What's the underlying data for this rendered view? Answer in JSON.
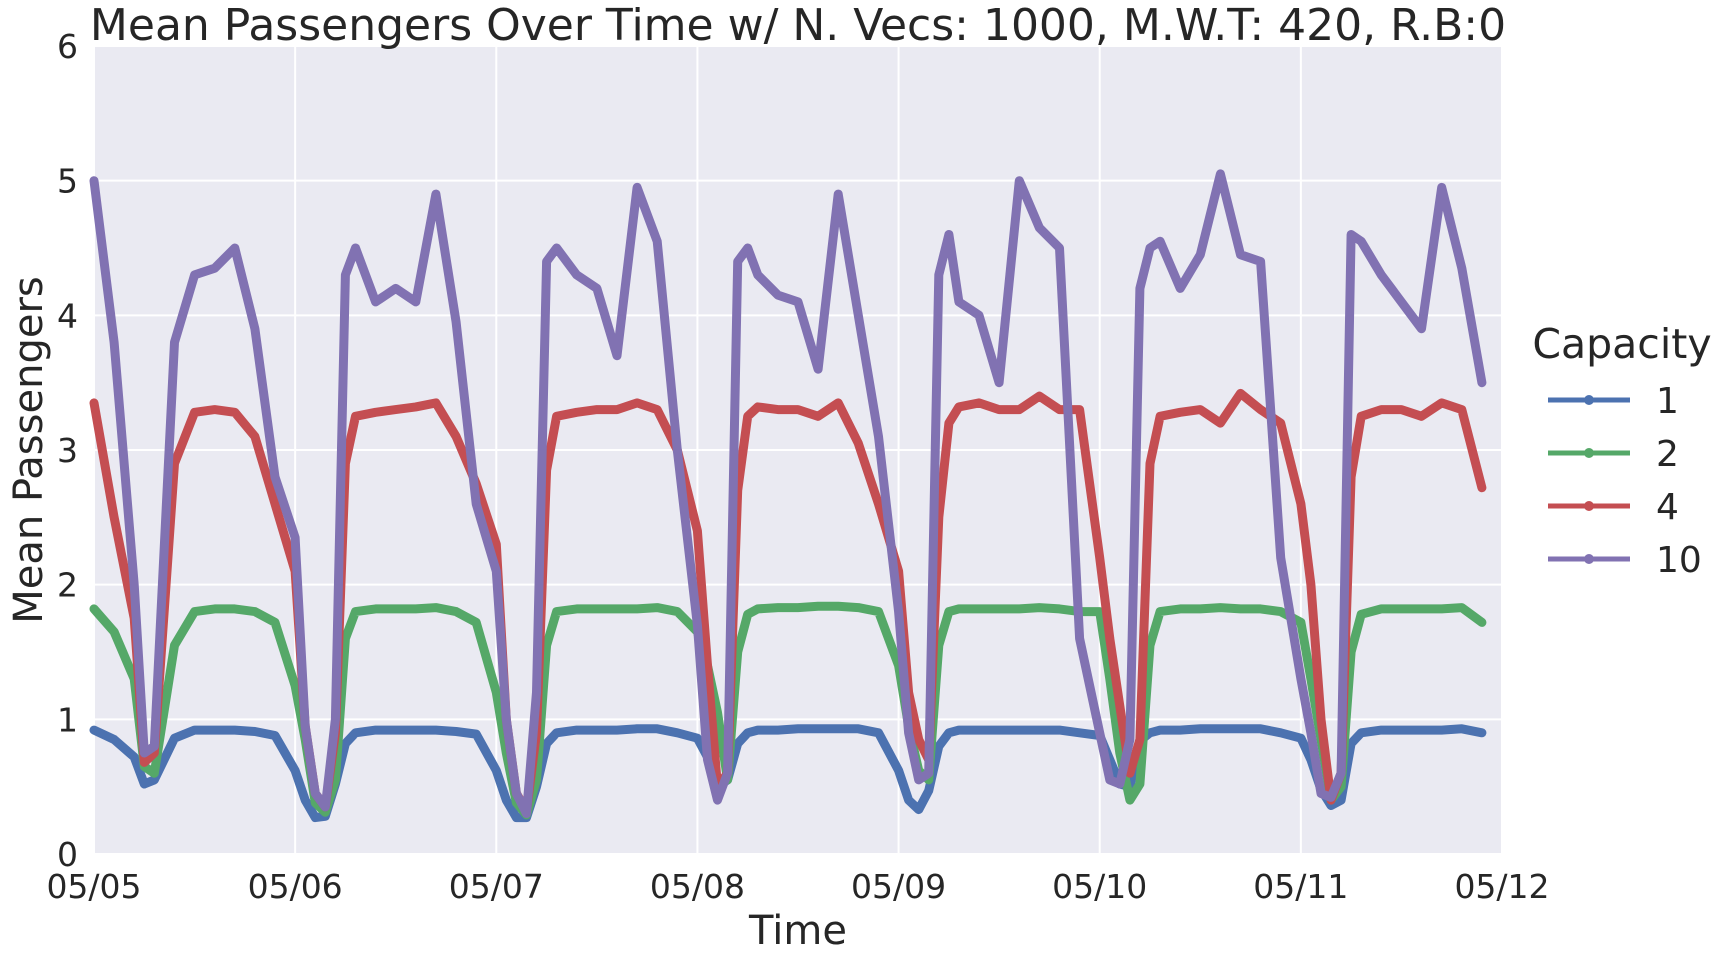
{
  "chart_data": {
    "type": "line",
    "title": "Mean Passengers Over Time w/ N. Vecs: 1000, M.W.T: 420, R.B:0",
    "xlabel": "Time",
    "ylabel": "Mean Passengers",
    "ylim": [
      0,
      6
    ],
    "xlim": [
      "05/05",
      "05/12"
    ],
    "x_ticks": [
      "05/05",
      "05/06",
      "05/07",
      "05/08",
      "05/09",
      "05/10",
      "05/11",
      "05/12"
    ],
    "y_ticks": [
      "0",
      "1",
      "2",
      "3",
      "4",
      "5",
      "6"
    ],
    "grid": true,
    "legend": {
      "title": "Capacity",
      "placement": "right"
    },
    "colors": [
      "#4c72b0",
      "#55a868",
      "#c44e52",
      "#8172b2"
    ],
    "background": "#eaeaf2",
    "x_days": [
      0.0,
      0.1,
      0.2,
      0.25,
      0.3,
      0.4,
      0.5,
      0.6,
      0.7,
      0.8,
      0.9,
      1.0,
      1.05,
      1.1,
      1.15,
      1.2,
      1.25,
      1.3,
      1.4,
      1.5,
      1.6,
      1.7,
      1.8,
      1.9,
      2.0,
      2.05,
      2.1,
      2.15,
      2.2,
      2.25,
      2.3,
      2.4,
      2.5,
      2.6,
      2.7,
      2.8,
      2.9,
      3.0,
      3.05,
      3.1,
      3.15,
      3.2,
      3.25,
      3.3,
      3.4,
      3.5,
      3.6,
      3.7,
      3.8,
      3.9,
      4.0,
      4.05,
      4.1,
      4.15,
      4.2,
      4.25,
      4.3,
      4.4,
      4.5,
      4.6,
      4.7,
      4.8,
      4.9,
      5.0,
      5.05,
      5.1,
      5.15,
      5.2,
      5.25,
      5.3,
      5.4,
      5.5,
      5.6,
      5.7,
      5.8,
      5.9,
      6.0,
      6.05,
      6.1,
      6.15,
      6.2,
      6.25,
      6.3,
      6.4,
      6.5,
      6.6,
      6.7,
      6.8,
      6.9
    ],
    "series": [
      {
        "name": "1",
        "values": [
          0.92,
          0.85,
          0.72,
          0.52,
          0.55,
          0.86,
          0.92,
          0.92,
          0.92,
          0.91,
          0.88,
          0.62,
          0.4,
          0.27,
          0.28,
          0.52,
          0.82,
          0.9,
          0.92,
          0.92,
          0.92,
          0.92,
          0.91,
          0.89,
          0.62,
          0.4,
          0.27,
          0.27,
          0.5,
          0.82,
          0.9,
          0.92,
          0.92,
          0.92,
          0.93,
          0.93,
          0.9,
          0.86,
          0.72,
          0.5,
          0.55,
          0.82,
          0.9,
          0.92,
          0.92,
          0.93,
          0.93,
          0.93,
          0.93,
          0.9,
          0.62,
          0.4,
          0.33,
          0.47,
          0.8,
          0.9,
          0.92,
          0.92,
          0.92,
          0.92,
          0.92,
          0.92,
          0.9,
          0.88,
          0.7,
          0.52,
          0.5,
          0.84,
          0.9,
          0.92,
          0.92,
          0.93,
          0.93,
          0.93,
          0.93,
          0.9,
          0.86,
          0.7,
          0.48,
          0.36,
          0.4,
          0.82,
          0.9,
          0.92,
          0.92,
          0.92,
          0.92,
          0.93,
          0.9
        ]
      },
      {
        "name": "2",
        "values": [
          1.82,
          1.65,
          1.3,
          0.65,
          0.6,
          1.55,
          1.8,
          1.82,
          1.82,
          1.8,
          1.72,
          1.25,
          0.85,
          0.38,
          0.31,
          0.55,
          1.6,
          1.8,
          1.82,
          1.82,
          1.82,
          1.83,
          1.8,
          1.72,
          1.2,
          0.75,
          0.38,
          0.29,
          0.55,
          1.55,
          1.8,
          1.82,
          1.82,
          1.82,
          1.82,
          1.83,
          1.8,
          1.65,
          1.4,
          1.05,
          0.55,
          1.5,
          1.78,
          1.82,
          1.83,
          1.83,
          1.84,
          1.84,
          1.83,
          1.8,
          1.4,
          0.95,
          0.62,
          0.55,
          1.55,
          1.8,
          1.82,
          1.82,
          1.82,
          1.82,
          1.83,
          1.82,
          1.8,
          1.8,
          1.3,
          0.75,
          0.4,
          0.52,
          1.55,
          1.8,
          1.82,
          1.82,
          1.83,
          1.82,
          1.82,
          1.8,
          1.72,
          1.3,
          0.85,
          0.4,
          0.5,
          1.5,
          1.78,
          1.82,
          1.82,
          1.82,
          1.82,
          1.83,
          1.72
        ]
      },
      {
        "name": "4",
        "values": [
          3.35,
          2.5,
          1.75,
          0.68,
          0.75,
          2.9,
          3.28,
          3.3,
          3.28,
          3.1,
          2.6,
          2.1,
          0.95,
          0.45,
          0.35,
          0.9,
          2.9,
          3.25,
          3.28,
          3.3,
          3.32,
          3.35,
          3.1,
          2.75,
          2.3,
          1.0,
          0.45,
          0.32,
          0.9,
          2.85,
          3.25,
          3.28,
          3.3,
          3.3,
          3.35,
          3.3,
          3.0,
          2.4,
          1.4,
          0.5,
          0.6,
          2.7,
          3.25,
          3.32,
          3.3,
          3.3,
          3.25,
          3.35,
          3.05,
          2.6,
          2.1,
          1.2,
          0.85,
          0.7,
          2.5,
          3.2,
          3.32,
          3.35,
          3.3,
          3.3,
          3.4,
          3.3,
          3.3,
          2.2,
          1.6,
          1.1,
          0.6,
          0.85,
          2.9,
          3.25,
          3.28,
          3.3,
          3.2,
          3.42,
          3.3,
          3.2,
          2.6,
          2.0,
          1.0,
          0.4,
          0.6,
          2.8,
          3.25,
          3.3,
          3.3,
          3.25,
          3.35,
          3.3,
          2.72
        ]
      },
      {
        "name": "10",
        "values": [
          5.0,
          3.8,
          2.0,
          0.75,
          0.8,
          3.8,
          4.3,
          4.35,
          4.5,
          3.9,
          2.8,
          2.35,
          0.95,
          0.45,
          0.35,
          1.0,
          4.3,
          4.5,
          4.1,
          4.2,
          4.1,
          4.9,
          3.95,
          2.6,
          2.1,
          1.0,
          0.45,
          0.3,
          1.2,
          4.4,
          4.5,
          4.3,
          4.2,
          3.7,
          4.95,
          4.55,
          3.0,
          1.7,
          0.7,
          0.4,
          0.6,
          4.4,
          4.5,
          4.3,
          4.15,
          4.1,
          3.6,
          4.9,
          4.0,
          3.1,
          1.8,
          0.9,
          0.55,
          0.6,
          4.3,
          4.6,
          4.1,
          4.0,
          3.5,
          5.0,
          4.65,
          4.5,
          1.6,
          0.9,
          0.55,
          0.52,
          0.85,
          4.2,
          4.5,
          4.55,
          4.2,
          4.45,
          5.05,
          4.45,
          4.4,
          2.2,
          1.3,
          0.9,
          0.45,
          0.42,
          0.6,
          4.6,
          4.55,
          4.3,
          4.1,
          3.9,
          4.95,
          4.35,
          3.5
        ]
      }
    ]
  }
}
